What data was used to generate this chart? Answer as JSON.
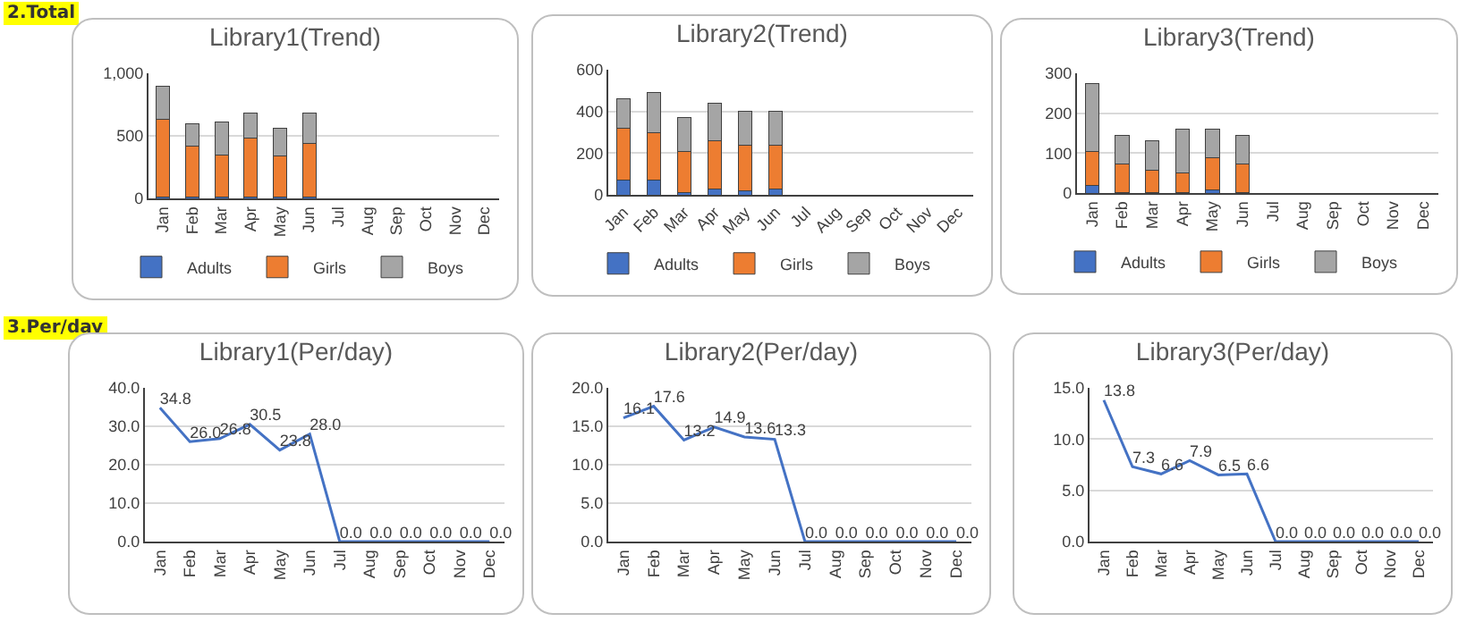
{
  "chart_data": [
    {
      "type": "bar",
      "title": "Library1(Trend)",
      "annotations": [
        "2.Total"
      ],
      "stacked": true,
      "categories": [
        "Jan",
        "Feb",
        "Mar",
        "Apr",
        "May",
        "Jun",
        "Jul",
        "Aug",
        "Sep",
        "Oct",
        "Nov",
        "Dec"
      ],
      "series": [
        {
          "name": "Adults",
          "color": "#4472c4",
          "values": [
            10,
            10,
            10,
            10,
            10,
            10,
            null,
            null,
            null,
            null,
            null,
            null
          ]
        },
        {
          "name": "Girls",
          "color": "#ed7d31",
          "values": [
            620,
            410,
            340,
            470,
            330,
            430,
            null,
            null,
            null,
            null,
            null,
            null
          ]
        },
        {
          "name": "Boys",
          "color": "#a5a5a5",
          "values": [
            270,
            180,
            260,
            200,
            220,
            240,
            null,
            null,
            null,
            null,
            null,
            null
          ]
        }
      ],
      "ylim": [
        0,
        1000
      ],
      "yticks": [
        0,
        500,
        {
          "value": 1000,
          "label": "1,000"
        }
      ],
      "grid": "y",
      "legend": "bottom"
    },
    {
      "type": "bar",
      "title": "Library2(Trend)",
      "stacked": true,
      "categories": [
        "Jan",
        "Feb",
        "Mar",
        "Apr",
        "May",
        "Jun",
        "Jul",
        "Aug",
        "Sep",
        "Oct",
        "Nov",
        "Dec"
      ],
      "series": [
        {
          "name": "Adults",
          "color": "#4472c4",
          "values": [
            70,
            70,
            10,
            30,
            20,
            30,
            null,
            null,
            null,
            null,
            null,
            null
          ]
        },
        {
          "name": "Girls",
          "color": "#ed7d31",
          "values": [
            250,
            230,
            200,
            230,
            220,
            210,
            null,
            null,
            null,
            null,
            null,
            null
          ]
        },
        {
          "name": "Boys",
          "color": "#a5a5a5",
          "values": [
            140,
            190,
            160,
            180,
            160,
            160,
            null,
            null,
            null,
            null,
            null,
            null
          ]
        }
      ],
      "ylim": [
        0,
        600
      ],
      "yticks": [
        0,
        200,
        400,
        600
      ],
      "grid": "y",
      "legend": "bottom"
    },
    {
      "type": "bar",
      "title": "Library3(Trend)",
      "stacked": true,
      "categories": [
        "Jan",
        "Feb",
        "Mar",
        "Apr",
        "May",
        "Jun",
        "Jul",
        "Aug",
        "Sep",
        "Oct",
        "Nov",
        "Dec"
      ],
      "series": [
        {
          "name": "Adults",
          "color": "#4472c4",
          "values": [
            20,
            2,
            2,
            2,
            8,
            2,
            null,
            null,
            null,
            null,
            null,
            null
          ]
        },
        {
          "name": "Girls",
          "color": "#ed7d31",
          "values": [
            85,
            70,
            56,
            48,
            80,
            70,
            null,
            null,
            null,
            null,
            null,
            null
          ]
        },
        {
          "name": "Boys",
          "color": "#a5a5a5",
          "values": [
            170,
            73,
            72,
            110,
            72,
            73,
            null,
            null,
            null,
            null,
            null,
            null
          ]
        }
      ],
      "ylim": [
        0,
        300
      ],
      "yticks": [
        0,
        100,
        200,
        300
      ],
      "grid": "y",
      "legend": "bottom"
    },
    {
      "type": "line",
      "title": "Library1(Per/day)",
      "annotations": [
        "3.Per/day"
      ],
      "categories": [
        "Jan",
        "Feb",
        "Mar",
        "Apr",
        "May",
        "Jun",
        "Jul",
        "Aug",
        "Sep",
        "Oct",
        "Nov",
        "Dec"
      ],
      "series": [
        {
          "color": "#4472c4",
          "values": [
            34.8,
            26.0,
            26.8,
            30.5,
            23.8,
            28.0,
            0.0,
            0.0,
            0.0,
            0.0,
            0.0,
            0.0
          ],
          "value_labels": [
            "34.8",
            "26.0",
            "26.8",
            "30.5",
            "23.8",
            "28.0",
            "0.0",
            "0.0",
            "0.0",
            "0.0",
            "0.0",
            "0.0"
          ]
        }
      ],
      "ylim": [
        0,
        40
      ],
      "yticks": [
        {
          "value": 0,
          "label": "0.0"
        },
        {
          "value": 10,
          "label": "10.0"
        },
        {
          "value": 20,
          "label": "20.0"
        },
        {
          "value": 30,
          "label": "30.0"
        },
        {
          "value": 40,
          "label": "40.0"
        }
      ],
      "grid": "y"
    },
    {
      "type": "line",
      "title": "Library2(Per/day)",
      "categories": [
        "Jan",
        "Feb",
        "Mar",
        "Apr",
        "May",
        "Jun",
        "Jul",
        "Aug",
        "Sep",
        "Oct",
        "Nov",
        "Dec"
      ],
      "series": [
        {
          "color": "#4472c4",
          "values": [
            16.1,
            17.6,
            13.2,
            14.9,
            13.6,
            13.3,
            0.0,
            0.0,
            0.0,
            0.0,
            0.0,
            0.0
          ],
          "value_labels": [
            "16.1",
            "17.6",
            "13.2",
            "14.9",
            "13.6",
            "13.3",
            "0.0",
            "0.0",
            "0.0",
            "0.0",
            "0.0",
            "0.0"
          ]
        }
      ],
      "ylim": [
        0,
        20
      ],
      "yticks": [
        {
          "value": 0,
          "label": "0.0"
        },
        {
          "value": 5,
          "label": "5.0"
        },
        {
          "value": 10,
          "label": "10.0"
        },
        {
          "value": 15,
          "label": "15.0"
        },
        {
          "value": 20,
          "label": "20.0"
        }
      ],
      "grid": "y"
    },
    {
      "type": "line",
      "title": "Library3(Per/day)",
      "categories": [
        "Jan",
        "Feb",
        "Mar",
        "Apr",
        "May",
        "Jun",
        "Jul",
        "Aug",
        "Sep",
        "Oct",
        "Nov",
        "Dec"
      ],
      "series": [
        {
          "color": "#4472c4",
          "values": [
            13.8,
            7.3,
            6.6,
            7.9,
            6.5,
            6.6,
            0.0,
            0.0,
            0.0,
            0.0,
            0.0,
            0.0
          ],
          "value_labels": [
            "13.8",
            "7.3",
            "6.6",
            "7.9",
            "6.5",
            "6.6",
            "0.0",
            "0.0",
            "0.0",
            "0.0",
            "0.0",
            "0.0"
          ]
        }
      ],
      "ylim": [
        0,
        15
      ],
      "yticks": [
        {
          "value": 0,
          "label": "0.0"
        },
        {
          "value": 5,
          "label": "5.0"
        },
        {
          "value": 10,
          "label": "10.0"
        },
        {
          "value": 15,
          "label": "15.0"
        }
      ],
      "grid": "y"
    }
  ]
}
